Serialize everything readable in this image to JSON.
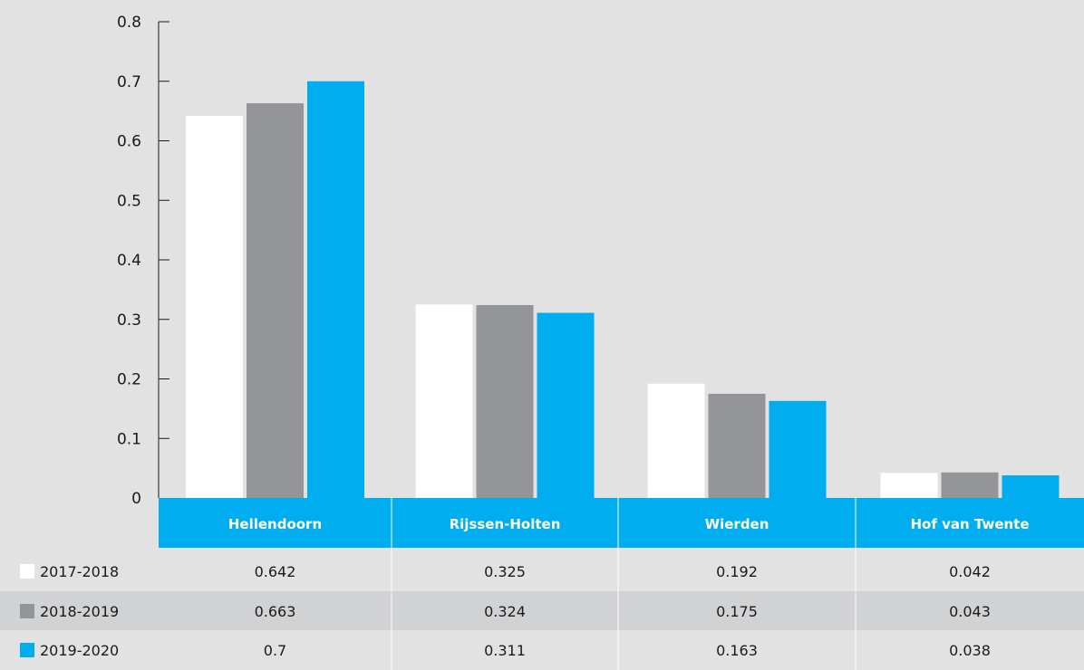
{
  "chart_data": {
    "type": "bar",
    "categories": [
      "Hellendoorn",
      "Rijssen-Holten",
      "Wierden",
      "Hof van Twente"
    ],
    "series": [
      {
        "name": "2017-2018",
        "color": "#ffffff",
        "values": [
          0.642,
          0.325,
          0.192,
          0.042
        ],
        "labels": [
          "0.642",
          "0.325",
          "0.192",
          "0.042"
        ]
      },
      {
        "name": "2018-2019",
        "color": "#949598",
        "values": [
          0.663,
          0.324,
          0.175,
          0.043
        ],
        "labels": [
          "0.663",
          "0.324",
          "0.175",
          "0.043"
        ]
      },
      {
        "name": "2019-2020",
        "color": "#00aeef",
        "values": [
          0.7,
          0.311,
          0.163,
          0.038
        ],
        "labels": [
          "0.7",
          "0.311",
          "0.163",
          "0.038"
        ]
      }
    ],
    "yticks": [
      "0",
      "0.1",
      "0.2",
      "0.3",
      "0.4",
      "0.5",
      "0.6",
      "0.7",
      "0.8"
    ],
    "ylim": [
      0,
      0.8
    ],
    "grid": false,
    "legend_placement": "bottom-left data table",
    "colors": {
      "background": "#e2e2e3",
      "category_band": "#00aeef",
      "striped_row": "#d1d2d4",
      "divider": "#ffffff"
    }
  }
}
